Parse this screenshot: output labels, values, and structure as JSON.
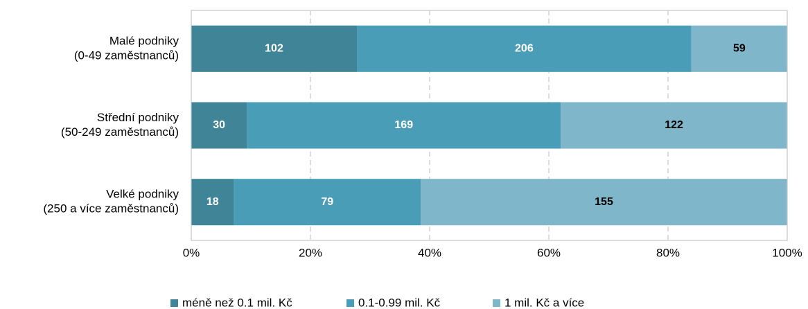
{
  "chart_data": {
    "type": "bar",
    "orientation": "horizontal",
    "stacking": "percent",
    "categories": [
      [
        "Malé podniky",
        "(0-49 zaměstnanců)"
      ],
      [
        "Střední podniky",
        "(50-249 zaměstnanců)"
      ],
      [
        "Velké podniky",
        "(250 a více zaměstnanců)"
      ]
    ],
    "series": [
      {
        "name": "méně než 0.1 mil. Kč",
        "color": "#3f8597",
        "label_color": "#ffffff",
        "values": [
          102,
          30,
          18
        ]
      },
      {
        "name": "0.1-0.99 mil. Kč",
        "color": "#4a9db6",
        "label_color": "#ffffff",
        "values": [
          206,
          169,
          79
        ]
      },
      {
        "name": "1 mil. Kč a více",
        "color": "#80b6c9",
        "label_color": "#000000",
        "values": [
          59,
          122,
          155
        ]
      }
    ],
    "xlim": [
      0,
      100
    ],
    "xticks": [
      {
        "value": 0,
        "label": "0%"
      },
      {
        "value": 20,
        "label": "20%"
      },
      {
        "value": 40,
        "label": "40%"
      },
      {
        "value": 60,
        "label": "60%"
      },
      {
        "value": 80,
        "label": "80%"
      },
      {
        "value": 100,
        "label": "100%"
      }
    ],
    "grid": true,
    "legend": "bottom"
  }
}
